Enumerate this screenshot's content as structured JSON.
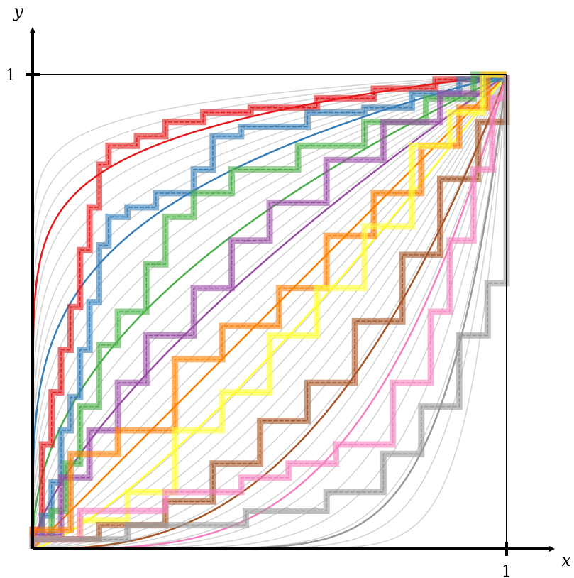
{
  "chart_data": {
    "type": "line",
    "title": "",
    "xlabel": "x",
    "ylabel": "y",
    "xlim": [
      0,
      1
    ],
    "ylim": [
      0,
      1
    ],
    "x_ticks": [
      "1"
    ],
    "y_ticks": [
      "1"
    ],
    "grid": false,
    "legend": "none",
    "background_curves": {
      "color": "#d3d3d3",
      "form": "y = x^p",
      "exponents": [
        0.06,
        0.08,
        0.1,
        0.12,
        0.14,
        0.17,
        0.2,
        0.23,
        0.26,
        0.3,
        0.34,
        0.38,
        0.43,
        0.48,
        0.54,
        0.6,
        0.67,
        0.75,
        0.83,
        0.92,
        1.0,
        1.1,
        1.2,
        1.32,
        1.45,
        1.6,
        1.76,
        1.95,
        2.2,
        2.5,
        2.85,
        3.3,
        3.9,
        4.7,
        5.8,
        7.5,
        10.0,
        14.0
      ]
    },
    "series": [
      {
        "color": "#e41a1c",
        "p": 0.12,
        "step_points": [
          [
            0,
            0
          ],
          [
            0,
            0.04
          ],
          [
            0.02,
            0.04
          ],
          [
            0.02,
            0.22
          ],
          [
            0.04,
            0.22
          ],
          [
            0.04,
            0.33
          ],
          [
            0.06,
            0.33
          ],
          [
            0.06,
            0.42
          ],
          [
            0.08,
            0.42
          ],
          [
            0.08,
            0.51
          ],
          [
            0.1,
            0.51
          ],
          [
            0.1,
            0.63
          ],
          [
            0.12,
            0.63
          ],
          [
            0.12,
            0.72
          ],
          [
            0.14,
            0.72
          ],
          [
            0.14,
            0.81
          ],
          [
            0.16,
            0.81
          ],
          [
            0.16,
            0.85
          ],
          [
            0.22,
            0.85
          ],
          [
            0.22,
            0.87
          ],
          [
            0.28,
            0.87
          ],
          [
            0.28,
            0.9
          ],
          [
            0.36,
            0.9
          ],
          [
            0.36,
            0.92
          ],
          [
            0.46,
            0.92
          ],
          [
            0.46,
            0.93
          ],
          [
            0.6,
            0.93
          ],
          [
            0.6,
            0.95
          ],
          [
            0.72,
            0.95
          ],
          [
            0.72,
            0.97
          ],
          [
            0.85,
            0.97
          ],
          [
            0.85,
            0.99
          ],
          [
            0.95,
            0.99
          ],
          [
            0.95,
            1
          ],
          [
            1,
            1
          ]
        ]
      },
      {
        "color": "#377eb8",
        "p": 0.26,
        "step_points": [
          [
            0,
            0
          ],
          [
            0,
            0.02
          ],
          [
            0.02,
            0.02
          ],
          [
            0.02,
            0.07
          ],
          [
            0.04,
            0.07
          ],
          [
            0.04,
            0.14
          ],
          [
            0.06,
            0.14
          ],
          [
            0.06,
            0.25
          ],
          [
            0.08,
            0.25
          ],
          [
            0.08,
            0.32
          ],
          [
            0.1,
            0.32
          ],
          [
            0.1,
            0.42
          ],
          [
            0.12,
            0.42
          ],
          [
            0.12,
            0.52
          ],
          [
            0.14,
            0.52
          ],
          [
            0.14,
            0.64
          ],
          [
            0.16,
            0.64
          ],
          [
            0.16,
            0.7
          ],
          [
            0.2,
            0.7
          ],
          [
            0.2,
            0.72
          ],
          [
            0.26,
            0.72
          ],
          [
            0.26,
            0.75
          ],
          [
            0.34,
            0.75
          ],
          [
            0.34,
            0.8
          ],
          [
            0.38,
            0.8
          ],
          [
            0.38,
            0.87
          ],
          [
            0.44,
            0.87
          ],
          [
            0.44,
            0.89
          ],
          [
            0.58,
            0.89
          ],
          [
            0.58,
            0.92
          ],
          [
            0.7,
            0.92
          ],
          [
            0.7,
            0.93
          ],
          [
            0.8,
            0.93
          ],
          [
            0.8,
            0.96
          ],
          [
            0.9,
            0.96
          ],
          [
            0.9,
            0.99
          ],
          [
            1,
            0.99
          ],
          [
            1,
            1
          ]
        ]
      },
      {
        "color": "#4daf4a",
        "p": 0.48,
        "step_points": [
          [
            0,
            0
          ],
          [
            0,
            0.02
          ],
          [
            0.04,
            0.02
          ],
          [
            0.04,
            0.08
          ],
          [
            0.07,
            0.08
          ],
          [
            0.07,
            0.18
          ],
          [
            0.1,
            0.18
          ],
          [
            0.1,
            0.3
          ],
          [
            0.14,
            0.3
          ],
          [
            0.14,
            0.43
          ],
          [
            0.18,
            0.43
          ],
          [
            0.18,
            0.5
          ],
          [
            0.24,
            0.5
          ],
          [
            0.24,
            0.6
          ],
          [
            0.28,
            0.6
          ],
          [
            0.28,
            0.7
          ],
          [
            0.34,
            0.7
          ],
          [
            0.34,
            0.75
          ],
          [
            0.42,
            0.75
          ],
          [
            0.42,
            0.8
          ],
          [
            0.56,
            0.8
          ],
          [
            0.56,
            0.85
          ],
          [
            0.7,
            0.85
          ],
          [
            0.7,
            0.9
          ],
          [
            0.83,
            0.9
          ],
          [
            0.83,
            0.95
          ],
          [
            0.93,
            0.95
          ],
          [
            0.93,
            1
          ],
          [
            1,
            1
          ]
        ]
      },
      {
        "color": "#984ea3",
        "p": 0.7,
        "step_points": [
          [
            0,
            0
          ],
          [
            0,
            0.03
          ],
          [
            0.06,
            0.03
          ],
          [
            0.06,
            0.15
          ],
          [
            0.12,
            0.15
          ],
          [
            0.12,
            0.25
          ],
          [
            0.18,
            0.25
          ],
          [
            0.18,
            0.35
          ],
          [
            0.24,
            0.35
          ],
          [
            0.24,
            0.45
          ],
          [
            0.34,
            0.45
          ],
          [
            0.34,
            0.55
          ],
          [
            0.42,
            0.55
          ],
          [
            0.42,
            0.65
          ],
          [
            0.5,
            0.65
          ],
          [
            0.5,
            0.73
          ],
          [
            0.62,
            0.73
          ],
          [
            0.62,
            0.82
          ],
          [
            0.74,
            0.82
          ],
          [
            0.74,
            0.9
          ],
          [
            0.86,
            0.9
          ],
          [
            0.86,
            0.96
          ],
          [
            0.95,
            0.96
          ],
          [
            0.95,
            1
          ],
          [
            1,
            1
          ]
        ]
      },
      {
        "color": "#ff7f00",
        "p": 1.0,
        "step_points": [
          [
            0,
            0
          ],
          [
            0,
            0.04
          ],
          [
            0.08,
            0.04
          ],
          [
            0.08,
            0.2
          ],
          [
            0.18,
            0.2
          ],
          [
            0.18,
            0.25
          ],
          [
            0.3,
            0.25
          ],
          [
            0.3,
            0.4
          ],
          [
            0.4,
            0.4
          ],
          [
            0.4,
            0.47
          ],
          [
            0.52,
            0.47
          ],
          [
            0.52,
            0.55
          ],
          [
            0.62,
            0.55
          ],
          [
            0.62,
            0.66
          ],
          [
            0.72,
            0.66
          ],
          [
            0.72,
            0.75
          ],
          [
            0.82,
            0.75
          ],
          [
            0.82,
            0.85
          ],
          [
            0.9,
            0.85
          ],
          [
            0.9,
            0.93
          ],
          [
            0.96,
            0.93
          ],
          [
            0.96,
            1
          ],
          [
            1,
            1
          ]
        ]
      },
      {
        "color": "#ffff33",
        "p": 1.3,
        "step_points": [
          [
            0,
            0
          ],
          [
            0,
            0.02
          ],
          [
            0.1,
            0.02
          ],
          [
            0.1,
            0.06
          ],
          [
            0.2,
            0.06
          ],
          [
            0.2,
            0.12
          ],
          [
            0.3,
            0.12
          ],
          [
            0.3,
            0.25
          ],
          [
            0.4,
            0.25
          ],
          [
            0.4,
            0.33
          ],
          [
            0.5,
            0.33
          ],
          [
            0.5,
            0.45
          ],
          [
            0.6,
            0.45
          ],
          [
            0.6,
            0.55
          ],
          [
            0.7,
            0.55
          ],
          [
            0.7,
            0.68
          ],
          [
            0.8,
            0.68
          ],
          [
            0.8,
            0.85
          ],
          [
            0.88,
            0.85
          ],
          [
            0.88,
            0.92
          ],
          [
            0.95,
            0.92
          ],
          [
            0.95,
            1
          ],
          [
            1,
            1
          ]
        ]
      },
      {
        "color": "#a65628",
        "p": 2.6,
        "step_points": [
          [
            0,
            0
          ],
          [
            0,
            0.02
          ],
          [
            0.14,
            0.02
          ],
          [
            0.14,
            0.05
          ],
          [
            0.28,
            0.05
          ],
          [
            0.28,
            0.1
          ],
          [
            0.38,
            0.1
          ],
          [
            0.38,
            0.18
          ],
          [
            0.48,
            0.18
          ],
          [
            0.48,
            0.27
          ],
          [
            0.58,
            0.27
          ],
          [
            0.58,
            0.35
          ],
          [
            0.68,
            0.35
          ],
          [
            0.68,
            0.48
          ],
          [
            0.78,
            0.48
          ],
          [
            0.78,
            0.62
          ],
          [
            0.86,
            0.62
          ],
          [
            0.86,
            0.78
          ],
          [
            0.94,
            0.78
          ],
          [
            0.94,
            0.9
          ],
          [
            1,
            0.9
          ],
          [
            1,
            1
          ]
        ]
      },
      {
        "color": "#f781bf",
        "p": 3.5,
        "step_points": [
          [
            0,
            0
          ],
          [
            0,
            0.02
          ],
          [
            0.1,
            0.02
          ],
          [
            0.1,
            0.08
          ],
          [
            0.28,
            0.08
          ],
          [
            0.28,
            0.12
          ],
          [
            0.44,
            0.12
          ],
          [
            0.44,
            0.15
          ],
          [
            0.54,
            0.15
          ],
          [
            0.54,
            0.18
          ],
          [
            0.64,
            0.18
          ],
          [
            0.64,
            0.22
          ],
          [
            0.76,
            0.22
          ],
          [
            0.76,
            0.35
          ],
          [
            0.84,
            0.35
          ],
          [
            0.84,
            0.5
          ],
          [
            0.88,
            0.5
          ],
          [
            0.88,
            0.65
          ],
          [
            0.93,
            0.65
          ],
          [
            0.93,
            0.8
          ],
          [
            0.97,
            0.8
          ],
          [
            0.97,
            0.95
          ],
          [
            1,
            0.95
          ],
          [
            1,
            1
          ]
        ]
      },
      {
        "color": "#999999",
        "p": 8.0,
        "step_points": [
          [
            0,
            0
          ],
          [
            0,
            0.02
          ],
          [
            0.2,
            0.02
          ],
          [
            0.2,
            0.05
          ],
          [
            0.45,
            0.05
          ],
          [
            0.45,
            0.08
          ],
          [
            0.62,
            0.08
          ],
          [
            0.62,
            0.12
          ],
          [
            0.74,
            0.12
          ],
          [
            0.74,
            0.2
          ],
          [
            0.82,
            0.2
          ],
          [
            0.82,
            0.3
          ],
          [
            0.9,
            0.3
          ],
          [
            0.9,
            0.45
          ],
          [
            0.96,
            0.45
          ],
          [
            0.96,
            0.56
          ],
          [
            1,
            0.56
          ],
          [
            1,
            1
          ]
        ]
      }
    ]
  }
}
